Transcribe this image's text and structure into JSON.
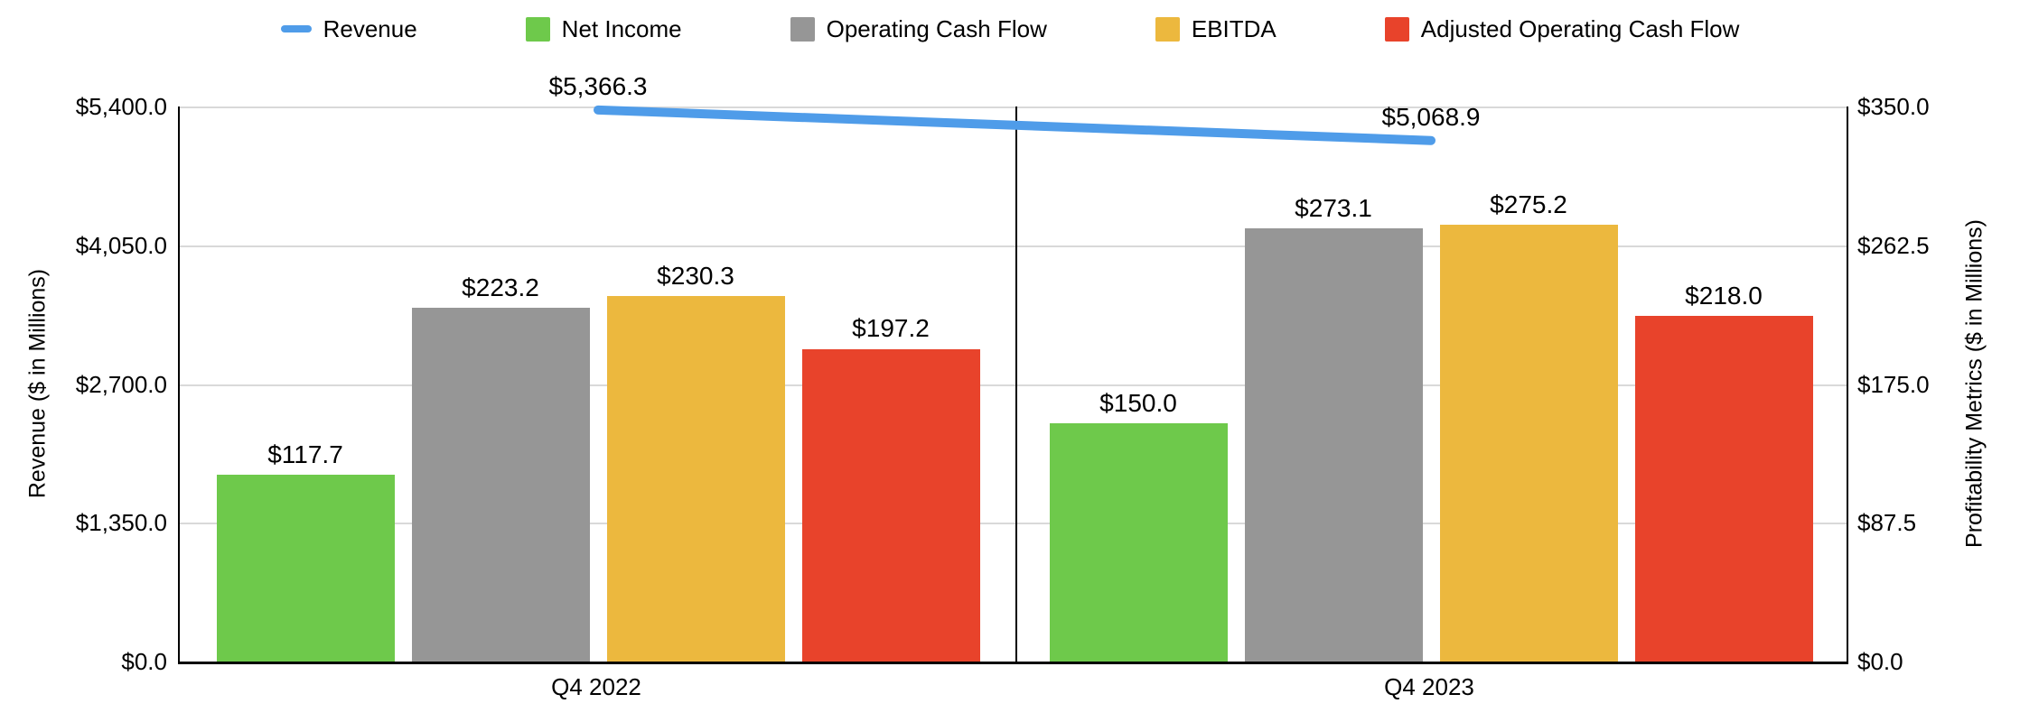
{
  "chart_data": {
    "type": "combo-bar-line",
    "categories": [
      "Q4 2022",
      "Q4 2023"
    ],
    "line_series": {
      "name": "Revenue",
      "color": "#4F9CE9",
      "axis": "left",
      "values": [
        5366.3,
        5068.9
      ],
      "labels": [
        "$5,366.3",
        "$5,068.9"
      ]
    },
    "bar_series": [
      {
        "name": "Net Income",
        "color": "#6EC94B",
        "values": [
          117.7,
          150.0
        ],
        "labels": [
          "$117.7",
          "$150.0"
        ]
      },
      {
        "name": "Operating Cash Flow",
        "color": "#969696",
        "values": [
          223.2,
          273.1
        ],
        "labels": [
          "$223.2",
          "$273.1"
        ]
      },
      {
        "name": "EBITDA",
        "color": "#ECB83E",
        "values": [
          230.3,
          275.2
        ],
        "labels": [
          "$230.3",
          "$275.2"
        ]
      },
      {
        "name": "Adjusted Operating Cash Flow",
        "color": "#E8432B",
        "values": [
          197.2,
          218.0
        ],
        "labels": [
          "$197.2",
          "$218.0"
        ]
      }
    ],
    "left_axis": {
      "title": "Revenue ($ in Millions)",
      "min": 0,
      "max": 5400,
      "ticks": [
        "$0.0",
        "$1,350.0",
        "$2,700.0",
        "$4,050.0",
        "$5,400.0"
      ]
    },
    "right_axis": {
      "title": "Profitability Metrics ($ in Millions)",
      "min": 0,
      "max": 350,
      "ticks": [
        "$0.0",
        "$87.5",
        "$175.0",
        "$262.5",
        "$350.0"
      ]
    },
    "legend": [
      {
        "label": "Revenue",
        "color": "#4F9CE9",
        "marker": "line"
      },
      {
        "label": "Net Income",
        "color": "#6EC94B",
        "marker": "square"
      },
      {
        "label": "Operating Cash Flow",
        "color": "#969696",
        "marker": "square"
      },
      {
        "label": "EBITDA",
        "color": "#ECB83E",
        "marker": "square"
      },
      {
        "label": "Adjusted Operating Cash Flow",
        "color": "#E8432B",
        "marker": "square"
      }
    ],
    "gridline_color": "#D9D9D9"
  }
}
